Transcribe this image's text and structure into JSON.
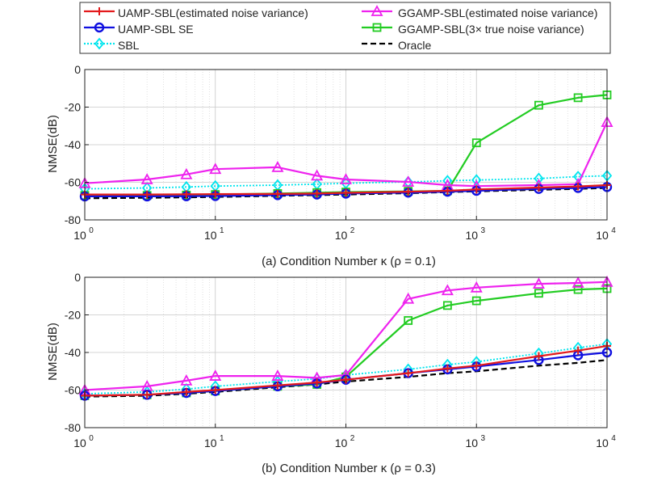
{
  "legend": {
    "entries": [
      {
        "key": "uamp",
        "label": "UAMP-SBL(estimated noise variance)"
      },
      {
        "key": "ggamp",
        "label": "GGAMP-SBL(estimated noise variance)"
      },
      {
        "key": "se",
        "label": "UAMP-SBL SE"
      },
      {
        "key": "gg3",
        "label": "GGAMP-SBL(3× true noise variance)"
      },
      {
        "key": "sbl",
        "label": "SBL"
      },
      {
        "key": "oracle",
        "label": "Oracle"
      }
    ]
  },
  "styles": {
    "uamp": {
      "color": "#e31a1c",
      "marker": "plus",
      "dash": ""
    },
    "se": {
      "color": "#1010e0",
      "marker": "circle",
      "dash": ""
    },
    "sbl": {
      "color": "#00e5ee",
      "marker": "diamond",
      "dash": "2,2"
    },
    "ggamp": {
      "color": "#ee22ee",
      "marker": "triangle",
      "dash": ""
    },
    "gg3": {
      "color": "#22cc22",
      "marker": "square",
      "dash": ""
    },
    "oracle": {
      "color": "#000000",
      "marker": "none",
      "dash": "7,4"
    }
  },
  "chart_data": [
    {
      "type": "line",
      "title": "(a) Condition Number κ (ρ = 0.1)",
      "xlabel": "(a) Condition Number κ (ρ = 0.1)",
      "ylabel": "NMSE(dB)",
      "xscale": "log",
      "xlim": [
        1,
        10000
      ],
      "ylim": [
        -80,
        0
      ],
      "yticks": [
        0,
        -20,
        -40,
        -60,
        -80
      ],
      "xtick_labels": [
        {
          "base": "10",
          "exp": "0"
        },
        {
          "base": "10",
          "exp": "1"
        },
        {
          "base": "10",
          "exp": "2"
        },
        {
          "base": "10",
          "exp": "3"
        },
        {
          "base": "10",
          "exp": "4"
        }
      ],
      "grid": true,
      "x": [
        1,
        3,
        6,
        10,
        30,
        60,
        100,
        300,
        600,
        1000,
        3000,
        6000,
        10000
      ],
      "series": [
        {
          "key": "uamp",
          "name": "UAMP-SBL(estimated noise variance)",
          "values": [
            -66.5,
            -66.5,
            -66.4,
            -66.3,
            -66.2,
            -66.0,
            -65.6,
            -65.0,
            -64.5,
            -63.8,
            -62.8,
            -62.2,
            -61.5
          ]
        },
        {
          "key": "se",
          "name": "UAMP-SBL SE",
          "values": [
            -67.5,
            -67.5,
            -67.4,
            -67.3,
            -66.8,
            -66.5,
            -66.0,
            -65.5,
            -65.0,
            -64.5,
            -63.5,
            -63.0,
            -62.5
          ]
        },
        {
          "key": "sbl",
          "name": "SBL",
          "values": [
            -63.5,
            -63.0,
            -62.5,
            -62.0,
            -61.5,
            -61.0,
            -60.5,
            -59.8,
            -59.2,
            -58.8,
            -58.0,
            -57.0,
            -56.5
          ]
        },
        {
          "key": "ggamp",
          "name": "GGAMP-SBL(estimated noise variance)",
          "values": [
            -60.5,
            -58.5,
            -55.8,
            -53.0,
            -52.0,
            -56.5,
            -58.5,
            -59.8,
            -61.5,
            -62.0,
            -61.5,
            -61.0,
            -28.0
          ]
        },
        {
          "key": "gg3",
          "name": "GGAMP-SBL(3× true noise variance)",
          "values": [
            -67.0,
            -67.0,
            -66.8,
            -66.5,
            -66.0,
            -65.5,
            -65.2,
            -64.8,
            -64.5,
            -39.0,
            -19.0,
            -15.0,
            -13.5
          ]
        },
        {
          "key": "oracle",
          "name": "Oracle",
          "values": [
            -68.5,
            -68.2,
            -68.0,
            -67.8,
            -67.2,
            -66.8,
            -66.5,
            -65.8,
            -65.2,
            -64.8,
            -64.0,
            -63.5,
            -63.0
          ]
        }
      ]
    },
    {
      "type": "line",
      "title": "(b) Condition Number κ (ρ = 0.3)",
      "xlabel": "(b) Condition Number κ (ρ = 0.3)",
      "ylabel": "NMSE(dB)",
      "xscale": "log",
      "xlim": [
        1,
        10000
      ],
      "ylim": [
        -80,
        0
      ],
      "yticks": [
        0,
        -20,
        -40,
        -60,
        -80
      ],
      "xtick_labels": [
        {
          "base": "10",
          "exp": "0"
        },
        {
          "base": "10",
          "exp": "1"
        },
        {
          "base": "10",
          "exp": "2"
        },
        {
          "base": "10",
          "exp": "3"
        },
        {
          "base": "10",
          "exp": "4"
        }
      ],
      "grid": true,
      "x": [
        1,
        3,
        6,
        10,
        30,
        60,
        100,
        300,
        600,
        1000,
        3000,
        6000,
        10000
      ],
      "series": [
        {
          "key": "uamp",
          "name": "UAMP-SBL(estimated noise variance)",
          "values": [
            -63.0,
            -62.5,
            -61.0,
            -60.0,
            -57.5,
            -56.0,
            -54.5,
            -51.0,
            -48.5,
            -47.0,
            -42.0,
            -39.0,
            -36.5
          ]
        },
        {
          "key": "se",
          "name": "UAMP-SBL SE",
          "values": [
            -63.0,
            -62.5,
            -61.5,
            -60.5,
            -58.0,
            -56.5,
            -54.5,
            -51.0,
            -49.0,
            -47.5,
            -44.0,
            -41.5,
            -40.0
          ]
        },
        {
          "key": "sbl",
          "name": "SBL",
          "values": [
            -62.0,
            -61.0,
            -59.5,
            -58.0,
            -55.5,
            -54.0,
            -52.0,
            -49.0,
            -46.5,
            -45.0,
            -40.5,
            -37.5,
            -35.5
          ]
        },
        {
          "key": "ggamp",
          "name": "GGAMP-SBL(estimated noise variance)",
          "values": [
            -60.0,
            -58.0,
            -55.0,
            -52.5,
            -52.5,
            -53.5,
            -52.0,
            -11.5,
            -7.0,
            -5.5,
            -3.5,
            -3.0,
            -2.5
          ]
        },
        {
          "key": "gg3",
          "name": "GGAMP-SBL(3× true noise variance)",
          "values": [
            -63.0,
            -62.5,
            -61.5,
            -60.5,
            -58.0,
            -57.0,
            -53.0,
            -23.0,
            -15.0,
            -12.5,
            -8.5,
            -6.5,
            -6.0
          ]
        },
        {
          "key": "oracle",
          "name": "Oracle",
          "values": [
            -63.5,
            -63.0,
            -62.0,
            -61.0,
            -58.5,
            -57.0,
            -55.5,
            -53.0,
            -51.0,
            -50.0,
            -47.0,
            -45.5,
            -44.0
          ]
        }
      ]
    }
  ]
}
